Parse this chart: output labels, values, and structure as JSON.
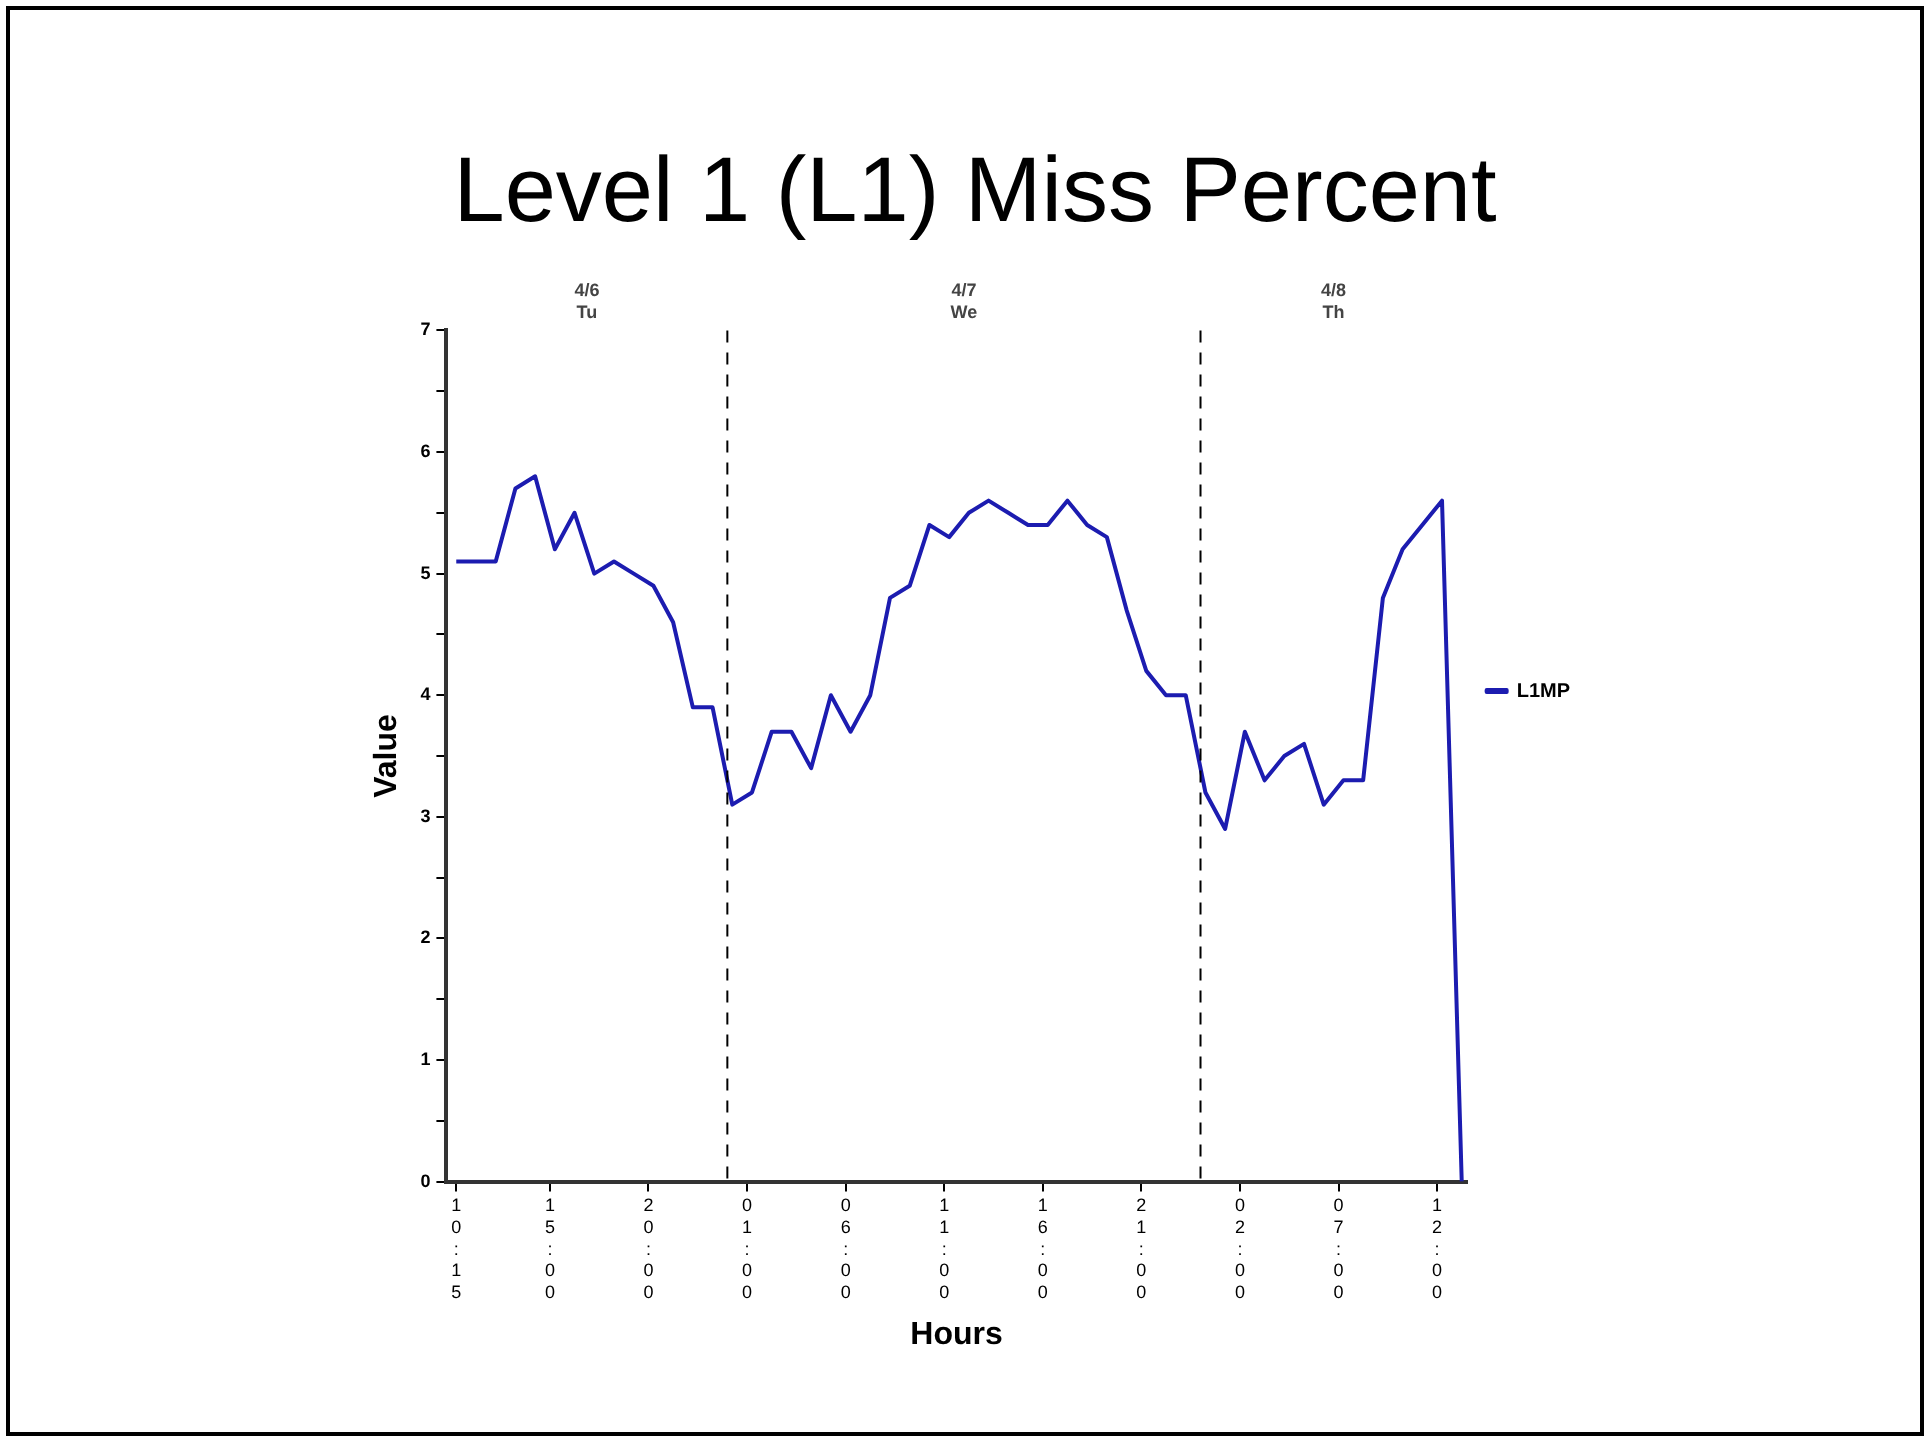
{
  "chart_data": {
    "type": "line",
    "title": "Level 1 (L1) Miss Percent",
    "xlabel": "Hours",
    "ylabel": "Value",
    "series": [
      {
        "name": "L1MP",
        "color": "#1c1cb0",
        "x": [
          "--04-06T10:15",
          "--04-06T12:15",
          "--04-06T13:15",
          "--04-06T14:15",
          "--04-06T15:15",
          "--04-06T16:15",
          "--04-06T17:15",
          "--04-06T18:15",
          "--04-06T19:15",
          "--04-06T20:15",
          "--04-06T21:15",
          "--04-06T22:15",
          "--04-06T23:15",
          "--04-07T00:15",
          "--04-07T01:15",
          "--04-07T02:15",
          "--04-07T03:15",
          "--04-07T04:15",
          "--04-07T05:15",
          "--04-07T06:15",
          "--04-07T07:15",
          "--04-07T08:15",
          "--04-07T09:15",
          "--04-07T10:15",
          "--04-07T11:15",
          "--04-07T12:15",
          "--04-07T13:15",
          "--04-07T14:15",
          "--04-07T15:15",
          "--04-07T16:15",
          "--04-07T17:15",
          "--04-07T18:15",
          "--04-07T19:15",
          "--04-07T20:15",
          "--04-07T21:15",
          "--04-07T22:15",
          "--04-07T23:15",
          "--04-08T00:15",
          "--04-08T01:15",
          "--04-08T02:15",
          "--04-08T03:15",
          "--04-08T04:15",
          "--04-08T05:15",
          "--04-08T06:15",
          "--04-08T07:15",
          "--04-08T08:15",
          "--04-08T09:15",
          "--04-08T10:15",
          "--04-08T11:15",
          "--04-08T12:15",
          "--04-08T13:15"
        ],
        "values": [
          5.1,
          5.1,
          5.7,
          5.8,
          5.2,
          5.5,
          5.0,
          5.1,
          5.0,
          4.9,
          4.6,
          3.9,
          3.9,
          3.1,
          3.2,
          3.7,
          3.7,
          3.4,
          4.0,
          3.7,
          4.0,
          4.8,
          4.9,
          5.4,
          5.3,
          5.5,
          5.6,
          5.5,
          5.4,
          5.4,
          5.6,
          5.4,
          5.3,
          4.7,
          4.2,
          4.0,
          4.0,
          3.2,
          2.9,
          3.7,
          3.3,
          3.5,
          3.6,
          3.1,
          3.3,
          3.3,
          4.8,
          5.2,
          5.4,
          5.6,
          0
        ]
      }
    ],
    "xlim": [
      "--04-06T09:45",
      "--04-08T13:30"
    ],
    "xticks": [
      {
        "value": "--04-06T10:15",
        "label": "10:15"
      },
      {
        "value": "--04-06T15:00",
        "label": "15:00"
      },
      {
        "value": "--04-06T20:00",
        "label": "20:00"
      },
      {
        "value": "--04-07T01:00",
        "label": "01:00"
      },
      {
        "value": "--04-07T06:00",
        "label": "06:00"
      },
      {
        "value": "--04-07T11:00",
        "label": "11:00"
      },
      {
        "value": "--04-07T16:00",
        "label": "16:00"
      },
      {
        "value": "--04-07T21:00",
        "label": "21:00"
      },
      {
        "value": "--04-08T02:00",
        "label": "02:00"
      },
      {
        "value": "--04-08T07:00",
        "label": "07:00"
      },
      {
        "value": "--04-08T12:00",
        "label": "12:00"
      }
    ],
    "annotations": [
      "4/6\nTu",
      "4/7\nWe",
      "4/8\nTh"
    ],
    "ylim": [
      0,
      7
    ],
    "yticks": [
      0,
      {
        "value": 0.5,
        "label": null
      },
      1,
      {
        "value": 1.5,
        "label": null
      },
      2,
      {
        "value": 2.5,
        "label": null
      },
      3,
      {
        "value": 3.5,
        "label": null
      },
      4,
      {
        "value": 4.5,
        "label": null
      },
      5,
      {
        "value": 5.5,
        "label": null
      },
      6,
      {
        "value": 6.5,
        "label": null
      },
      7
    ],
    "ref_lines": [
      {
        "axis": "x",
        "value": "--04-07",
        "line_style": "dashed",
        "color": "#000000"
      },
      {
        "axis": "x",
        "value": "--04-08",
        "line_style": "dashed",
        "color": "#000000"
      }
    ],
    "grid": false,
    "legend": "right",
    "marker": "none",
    "line_style": "solid"
  }
}
